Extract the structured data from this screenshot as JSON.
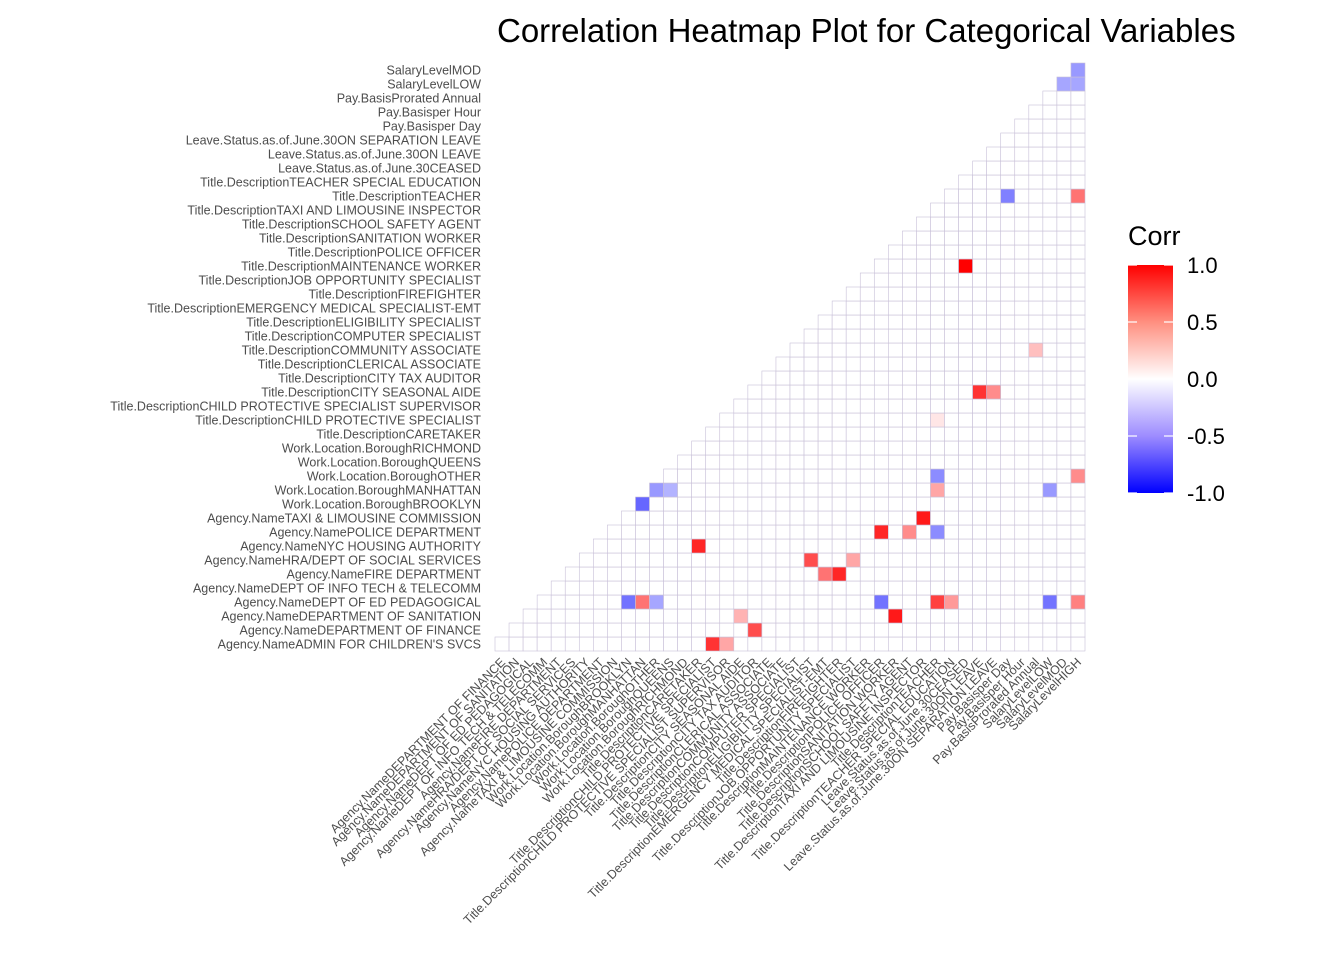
{
  "chart_data": {
    "type": "heatmap",
    "title": "Correlation Heatmap Plot for Categorical Variables",
    "legend": {
      "title": "Corr",
      "ticks": [
        "1.0",
        "0.5",
        "0.0",
        "-0.5",
        "-1.0"
      ],
      "tick_values": [
        1.0,
        0.5,
        0.0,
        -0.5,
        -1.0
      ],
      "placement": "right"
    },
    "color_scale": {
      "low": "#0000ff",
      "mid": "#ffffff",
      "high": "#ff0000",
      "limits": [
        -1,
        1
      ]
    },
    "grid_color": "#c8c0d8",
    "variables": [
      "Agency.NameADMIN FOR CHILDREN'S SVCS",
      "Agency.NameDEPARTMENT OF FINANCE",
      "Agency.NameDEPARTMENT OF SANITATION",
      "Agency.NameDEPT OF ED PEDAGOGICAL",
      "Agency.NameDEPT OF INFO TECH & TELECOMM",
      "Agency.NameFIRE DEPARTMENT",
      "Agency.NameHRA/DEPT OF SOCIAL SERVICES",
      "Agency.NameNYC HOUSING AUTHORITY",
      "Agency.NamePOLICE DEPARTMENT",
      "Agency.NameTAXI & LIMOUSINE COMMISSION",
      "Work.Location.BoroughBROOKLYN",
      "Work.Location.BoroughMANHATTAN",
      "Work.Location.BoroughOTHER",
      "Work.Location.BoroughQUEENS",
      "Work.Location.BoroughRICHMOND",
      "Title.DescriptionCARETAKER",
      "Title.DescriptionCHILD PROTECTIVE SPECIALIST",
      "Title.DescriptionCHILD PROTECTIVE SPECIALIST SUPERVISOR",
      "Title.DescriptionCITY SEASONAL AIDE",
      "Title.DescriptionCITY TAX AUDITOR",
      "Title.DescriptionCLERICAL ASSOCIATE",
      "Title.DescriptionCOMMUNITY ASSOCIATE",
      "Title.DescriptionCOMPUTER SPECIALIST",
      "Title.DescriptionELIGIBILITY SPECIALIST",
      "Title.DescriptionEMERGENCY MEDICAL SPECIALIST-EMT",
      "Title.DescriptionFIREFIGHTER",
      "Title.DescriptionJOB OPPORTUNITY SPECIALIST",
      "Title.DescriptionMAINTENANCE WORKER",
      "Title.DescriptionPOLICE OFFICER",
      "Title.DescriptionSANITATION WORKER",
      "Title.DescriptionSCHOOL SAFETY AGENT",
      "Title.DescriptionTAXI AND LIMOUSINE INSPECTOR",
      "Title.DescriptionTEACHER",
      "Title.DescriptionTEACHER SPECIAL EDUCATION",
      "Leave.Status.as.of.June.30CEASED",
      "Leave.Status.as.of.June.30ON LEAVE",
      "Leave.Status.as.of.June.30ON SEPARATION LEAVE",
      "Pay.Basisper Day",
      "Pay.Basisper Hour",
      "Pay.BasisProrated Annual",
      "SalaryLevelLOW",
      "SalaryLevelMOD",
      "SalaryLevelHIGH"
    ],
    "x_labels": [
      "Agency.NameDEPARTMENT OF FINANCE",
      "Agency.NameDEPARTMENT OF SANITATION",
      "Agency.NameDEPT OF ED PEDAGOGICAL",
      "Agency.NameDEPT OF INFO TECH & TELECOMM",
      "Agency.NameFIRE DEPARTMENT",
      "Agency.NameHRA/DEPT OF SOCIAL SERVICES",
      "Agency.NameNYC HOUSING AUTHORITY",
      "Agency.NamePOLICE DEPARTMENT",
      "Agency.NameTAXI & LIMOUSINE COMMISSION",
      "Work.Location.BoroughBROOKLYN",
      "Work.Location.BoroughMANHATTAN",
      "Work.Location.BoroughOTHER",
      "Work.Location.BoroughQUEENS",
      "Work.Location.BoroughRICHMOND",
      "Title.DescriptionCARETAKER",
      "Title.DescriptionCHILD PROTECTIVE SPECIALIST",
      "Title.DescriptionCHILD PROTECTIVE SPECIALIST SUPERVISOR",
      "Title.DescriptionCITY SEASONAL AIDE",
      "Title.DescriptionCITY TAX AUDITOR",
      "Title.DescriptionCLERICAL ASSOCIATE",
      "Title.DescriptionCOMMUNITY ASSOCIATE",
      "Title.DescriptionCOMPUTER SPECIALIST",
      "Title.DescriptionELIGIBILITY SPECIALIST",
      "Title.DescriptionEMERGENCY MEDICAL SPECIALIST-EMT",
      "Title.DescriptionFIREFIGHTER",
      "Title.DescriptionJOB OPPORTUNITY SPECIALIST",
      "Title.DescriptionMAINTENANCE WORKER",
      "Title.DescriptionPOLICE OFFICER",
      "Title.DescriptionSANITATION WORKER",
      "Title.DescriptionSCHOOL SAFETY AGENT",
      "Title.DescriptionTAXI AND LIMOUSINE INSPECTOR",
      "Title.DescriptionTEACHER",
      "Title.DescriptionTEACHER SPECIAL EDUCATION",
      "Leave.Status.as.of.June.30CEASED",
      "Leave.Status.as.of.June.30ON LEAVE",
      "Leave.Status.as.of.June.30ON SEPARATION LEAVE",
      "Pay.Basisper Day",
      "Pay.Basisper Hour",
      "Pay.BasisProrated Annual",
      "SalaryLevelLOW",
      "SalaryLevelMOD",
      "SalaryLevelHIGH"
    ],
    "y_labels": [
      "Agency.NameADMIN FOR CHILDREN'S SVCS",
      "Agency.NameDEPARTMENT OF FINANCE",
      "Agency.NameDEPARTMENT OF SANITATION",
      "Agency.NameDEPT OF ED PEDAGOGICAL",
      "Agency.NameDEPT OF INFO TECH & TELECOMM",
      "Agency.NameFIRE DEPARTMENT",
      "Agency.NameHRA/DEPT OF SOCIAL SERVICES",
      "Agency.NameNYC HOUSING AUTHORITY",
      "Agency.NamePOLICE DEPARTMENT",
      "Agency.NameTAXI & LIMOUSINE COMMISSION",
      "Work.Location.BoroughBROOKLYN",
      "Work.Location.BoroughMANHATTAN",
      "Work.Location.BoroughOTHER",
      "Work.Location.BoroughQUEENS",
      "Work.Location.BoroughRICHMOND",
      "Title.DescriptionCARETAKER",
      "Title.DescriptionCHILD PROTECTIVE SPECIALIST",
      "Title.DescriptionCHILD PROTECTIVE SPECIALIST SUPERVISOR",
      "Title.DescriptionCITY SEASONAL AIDE",
      "Title.DescriptionCITY TAX AUDITOR",
      "Title.DescriptionCLERICAL ASSOCIATE",
      "Title.DescriptionCOMMUNITY ASSOCIATE",
      "Title.DescriptionCOMPUTER SPECIALIST",
      "Title.DescriptionELIGIBILITY SPECIALIST",
      "Title.DescriptionEMERGENCY MEDICAL SPECIALIST-EMT",
      "Title.DescriptionFIREFIGHTER",
      "Title.DescriptionJOB OPPORTUNITY SPECIALIST",
      "Title.DescriptionMAINTENANCE WORKER",
      "Title.DescriptionPOLICE OFFICER",
      "Title.DescriptionSANITATION WORKER",
      "Title.DescriptionSCHOOL SAFETY AGENT",
      "Title.DescriptionTAXI AND LIMOUSINE INSPECTOR",
      "Title.DescriptionTEACHER",
      "Title.DescriptionTEACHER SPECIAL EDUCATION",
      "Leave.Status.as.of.June.30CEASED",
      "Leave.Status.as.of.June.30ON LEAVE",
      "Leave.Status.as.of.June.30ON SEPARATION LEAVE",
      "Pay.Basisper Day",
      "Pay.Basisper Hour",
      "Pay.BasisProrated Annual",
      "SalaryLevelLOW",
      "SalaryLevelMOD"
    ],
    "notable_correlations": [
      {
        "x": "Title.DescriptionCARETAKER",
        "y": "Agency.NameNYC HOUSING AUTHORITY",
        "corr": 0.85
      },
      {
        "x": "Title.DescriptionCHILD PROTECTIVE SPECIALIST",
        "y": "Agency.NameADMIN FOR CHILDREN'S SVCS",
        "corr": 0.8
      },
      {
        "x": "Title.DescriptionCHILD PROTECTIVE SPECIALIST SUPERVISOR",
        "y": "Agency.NameADMIN FOR CHILDREN'S SVCS",
        "corr": 0.35
      },
      {
        "x": "Title.DescriptionCITY TAX AUDITOR",
        "y": "Agency.NameDEPARTMENT OF FINANCE",
        "corr": 0.7
      },
      {
        "x": "Title.DescriptionCITY SEASONAL AIDE",
        "y": "Agency.NameDEPARTMENT OF SANITATION",
        "corr": 0.3
      },
      {
        "x": "Title.DescriptionELIGIBILITY SPECIALIST",
        "y": "Agency.NameHRA/DEPT OF SOCIAL SERVICES",
        "corr": 0.7
      },
      {
        "x": "Title.DescriptionJOB OPPORTUNITY SPECIALIST",
        "y": "Agency.NameHRA/DEPT OF SOCIAL SERVICES",
        "corr": 0.35
      },
      {
        "x": "Title.DescriptionEMERGENCY MEDICAL SPECIALIST-EMT",
        "y": "Agency.NameFIRE DEPARTMENT",
        "corr": 0.55
      },
      {
        "x": "Title.DescriptionFIREFIGHTER",
        "y": "Agency.NameFIRE DEPARTMENT",
        "corr": 0.85
      },
      {
        "x": "Title.DescriptionPOLICE OFFICER",
        "y": "Agency.NamePOLICE DEPARTMENT",
        "corr": 0.85
      },
      {
        "x": "Title.DescriptionSCHOOL SAFETY AGENT",
        "y": "Agency.NamePOLICE DEPARTMENT",
        "corr": 0.45
      },
      {
        "x": "Title.DescriptionSANITATION WORKER",
        "y": "Agency.NameDEPARTMENT OF SANITATION",
        "corr": 0.9
      },
      {
        "x": "Title.DescriptionTAXI AND LIMOUSINE INSPECTOR",
        "y": "Agency.NameTAXI & LIMOUSINE COMMISSION",
        "corr": 0.9
      },
      {
        "x": "Title.DescriptionTEACHER",
        "y": "Agency.NameDEPT OF ED PEDAGOGICAL",
        "corr": 0.75
      },
      {
        "x": "Title.DescriptionTEACHER SPECIAL EDUCATION",
        "y": "Agency.NameDEPT OF ED PEDAGOGICAL",
        "corr": 0.4
      },
      {
        "x": "Title.DescriptionTEACHER",
        "y": "Work.Location.BoroughMANHATTAN",
        "corr": 0.35
      },
      {
        "x": "Title.DescriptionTEACHER",
        "y": "Agency.NamePOLICE DEPARTMENT",
        "corr": -0.45
      },
      {
        "x": "Title.DescriptionPOLICE OFFICER",
        "y": "Agency.NameDEPT OF ED PEDAGOGICAL",
        "corr": -0.55
      },
      {
        "x": "Work.Location.BoroughBROOKLYN",
        "y": "Agency.NameDEPT OF ED PEDAGOGICAL",
        "corr": -0.55
      },
      {
        "x": "Work.Location.BoroughMANHATTAN",
        "y": "Agency.NameDEPT OF ED PEDAGOGICAL",
        "corr": 0.55
      },
      {
        "x": "Work.Location.BoroughMANHATTAN",
        "y": "Work.Location.BoroughBROOKLYN",
        "corr": -0.6
      },
      {
        "x": "Work.Location.BoroughOTHER",
        "y": "Work.Location.BoroughMANHATTAN",
        "corr": -0.4
      },
      {
        "x": "Work.Location.BoroughQUEENS",
        "y": "Work.Location.BoroughMANHATTAN",
        "corr": -0.3
      },
      {
        "x": "Work.Location.BoroughOTHER",
        "y": "Agency.NameDEPT OF ED PEDAGOGICAL",
        "corr": -0.35
      },
      {
        "x": "Title.DescriptionTEACHER",
        "y": "Title.DescriptionCHILD PROTECTIVE SPECIALIST",
        "corr": 0.1
      },
      {
        "x": "Leave.Status.as.of.June.30ON LEAVE",
        "y": "Title.DescriptionCITY SEASONAL AIDE",
        "corr": 0.8
      },
      {
        "x": "Leave.Status.as.of.June.30ON SEPARATION LEAVE",
        "y": "Title.DescriptionCITY SEASONAL AIDE",
        "corr": 0.45
      },
      {
        "x": "Leave.Status.as.of.June.30CEASED",
        "y": "Title.DescriptionMAINTENANCE WORKER",
        "corr": 1.0
      },
      {
        "x": "Pay.Basisper Day",
        "y": "Title.DescriptionTEACHER",
        "corr": -0.5
      },
      {
        "x": "SalaryLevelLOW",
        "y": "Agency.NameDEPT OF ED PEDAGOGICAL",
        "corr": -0.55
      },
      {
        "x": "SalaryLevelHIGH",
        "y": "Agency.NameDEPT OF ED PEDAGOGICAL",
        "corr": 0.5
      },
      {
        "x": "SalaryLevelHIGH",
        "y": "Work.Location.BoroughOTHER",
        "corr": 0.45
      },
      {
        "x": "SalaryLevelHIGH",
        "y": "Title.DescriptionTEACHER",
        "corr": 0.55
      },
      {
        "x": "SalaryLevelMOD",
        "y": "SalaryLevelLOW",
        "corr": -0.35
      },
      {
        "x": "SalaryLevelHIGH",
        "y": "SalaryLevelLOW",
        "corr": -0.35
      },
      {
        "x": "SalaryLevelHIGH",
        "y": "SalaryLevelMOD",
        "corr": -0.4
      },
      {
        "x": "Pay.BasisProrated Annual",
        "y": "Title.DescriptionCOMMUNITY ASSOCIATE",
        "corr": 0.25
      },
      {
        "x": "SalaryLevelLOW",
        "y": "Work.Location.BoroughMANHATTAN",
        "corr": -0.4
      },
      {
        "x": "Work.Location.BoroughOTHER",
        "y": "Title.DescriptionTEACHER",
        "corr": -0.45
      }
    ]
  }
}
